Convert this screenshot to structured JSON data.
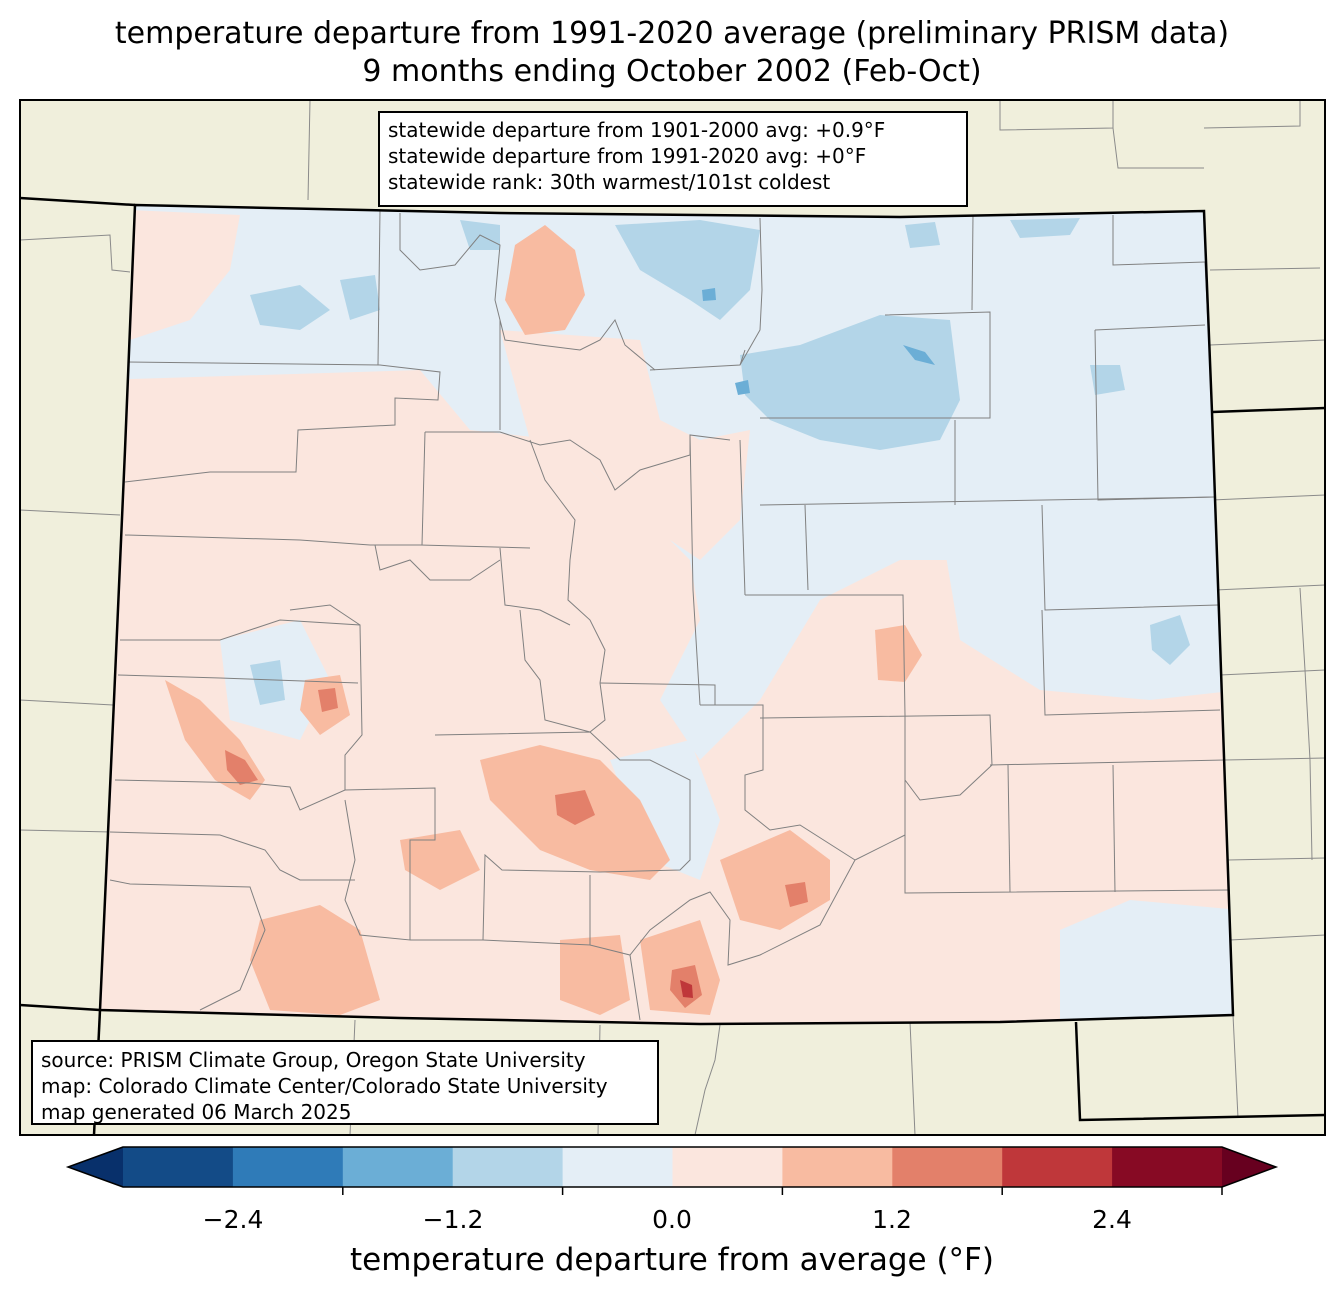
{
  "title": {
    "line1": "temperature departure from 1991-2020 average (preliminary PRISM data)",
    "line2": "9 months ending October 2002 (Feb-Oct)"
  },
  "stats": {
    "line1": "statewide departure from 1901-2000 avg: +0.9°F",
    "line2": "statewide departure from 1991-2020 avg: +0°F",
    "line3": "statewide rank: 30th warmest/101st coldest"
  },
  "source": {
    "line1": "source: PRISM Climate Group, Oregon State University",
    "line2": "map: Colorado Climate Center/Colorado State University",
    "line3": "map generated 06 March 2025"
  },
  "colorbar": {
    "label": "temperature departure from average (°F)",
    "ticks": [
      "−2.4",
      "−1.2",
      "0.0",
      "1.2",
      "2.4"
    ],
    "colors": [
      "#08306b",
      "#134b87",
      "#2f7bb8",
      "#6baed6",
      "#b3d5e8",
      "#e4eef6",
      "#fbe6de",
      "#f8bba1",
      "#e3806a",
      "#bf373a",
      "#870a24",
      "#67001f"
    ]
  },
  "map_colors": {
    "background": "#f0efdc",
    "state_fill": "#e4eef6",
    "warm_light": "#fbe6de",
    "warm_mid": "#f8bba1",
    "warm_strong": "#e3806a",
    "warm_max": "#bf373a",
    "cool_light": "#b3d5e8",
    "cool_mid": "#6baed6"
  }
}
